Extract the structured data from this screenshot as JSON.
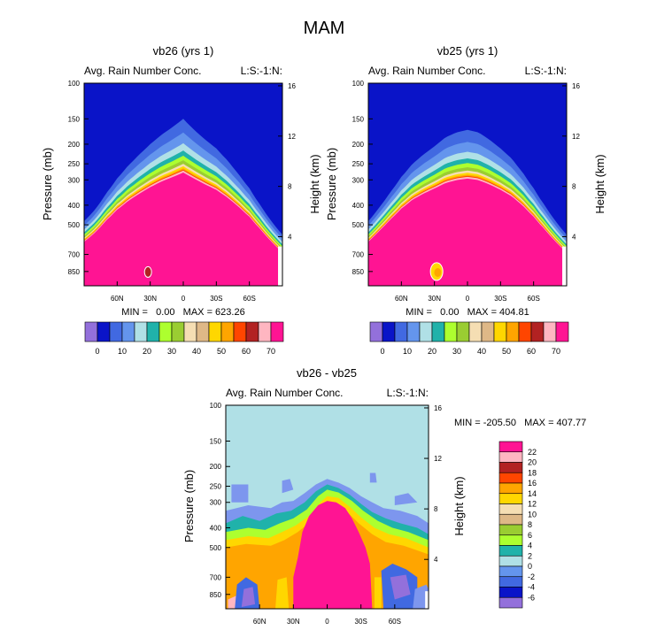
{
  "page": {
    "title": "MAM"
  },
  "colors": {
    "magenta": "#ff1493",
    "top_blue": "#0a14c8",
    "diff_bg": "#b0e0e6",
    "diff_light_blue": "#7d96ee",
    "diff_mid_blue": "#4169e1",
    "diff_dark_blue": "#0a14c8",
    "diff_purple": "#9370db",
    "panel_frame": "#000000"
  },
  "chart_data": [
    {
      "id": "vb26",
      "type": "heatmap",
      "title": "vb26 (yrs 1)",
      "left_string": "Avg. Rain Number Conc.",
      "right_string": "L:S:-1:N:",
      "ylabel": "Pressure (mb)",
      "y2label": "Height (km)",
      "xticks": [
        "60N",
        "30N",
        "0",
        "30S",
        "60S"
      ],
      "xtick_values": [
        60,
        30,
        0,
        -30,
        -60
      ],
      "xlim": [
        90,
        -90
      ],
      "yticks": [
        "100",
        "150",
        "200",
        "250",
        "300",
        "400",
        "500",
        "700",
        "850"
      ],
      "ytick_values": [
        100,
        150,
        200,
        250,
        300,
        400,
        500,
        700,
        850
      ],
      "ylim": [
        100,
        1000
      ],
      "y2ticks": [
        "16",
        "12",
        "8",
        "4"
      ],
      "y2tick_values": [
        16,
        12,
        8,
        4
      ],
      "stats": "MIN =   0.00   MAX = 623.26",
      "min": 0.0,
      "max": 623.26,
      "contour_top_pressure": {
        "lat": [
          90,
          80,
          70,
          60,
          50,
          40,
          30,
          20,
          10,
          0,
          -10,
          -20,
          -30,
          -40,
          -50,
          -60,
          -70,
          -80,
          -90
        ],
        "pressure": [
          600,
          540,
          470,
          415,
          375,
          345,
          320,
          300,
          285,
          270,
          290,
          310,
          330,
          360,
          400,
          450,
          520,
          600,
          680
        ]
      },
      "colorbar": {
        "labels": [
          "0",
          "10",
          "20",
          "30",
          "40",
          "50",
          "60",
          "70"
        ],
        "colors": [
          "#9370db",
          "#0a14c8",
          "#4169e1",
          "#6495ed",
          "#b0e0e6",
          "#20b2aa",
          "#adff2f",
          "#9acd32",
          "#f5deb3",
          "#deb887",
          "#ffd700",
          "#ffa500",
          "#ff4500",
          "#b22222",
          "#ffb6c1",
          "#ff1493"
        ]
      }
    },
    {
      "id": "vb25",
      "type": "heatmap",
      "title": "vb25 (yrs 1)",
      "left_string": "Avg. Rain Number Conc.",
      "right_string": "L:S:-1:N:",
      "ylabel": "Pressure (mb)",
      "y2label": "Height (km)",
      "xticks": [
        "60N",
        "30N",
        "0",
        "30S",
        "60S"
      ],
      "xtick_values": [
        60,
        30,
        0,
        -30,
        -60
      ],
      "xlim": [
        90,
        -90
      ],
      "yticks": [
        "100",
        "150",
        "200",
        "250",
        "300",
        "400",
        "500",
        "700",
        "850"
      ],
      "ytick_values": [
        100,
        150,
        200,
        250,
        300,
        400,
        500,
        700,
        850
      ],
      "ylim": [
        100,
        1000
      ],
      "y2ticks": [
        "16",
        "12",
        "8",
        "4"
      ],
      "y2tick_values": [
        16,
        12,
        8,
        4
      ],
      "stats": "MIN =   0.00   MAX = 404.81",
      "min": 0.0,
      "max": 404.81,
      "contour_top_pressure": {
        "lat": [
          90,
          80,
          70,
          60,
          50,
          40,
          30,
          20,
          10,
          0,
          -10,
          -20,
          -30,
          -40,
          -50,
          -60,
          -70,
          -80,
          -90
        ],
        "pressure": [
          600,
          530,
          465,
          410,
          370,
          345,
          325,
          305,
          295,
          290,
          295,
          310,
          330,
          355,
          395,
          450,
          520,
          600,
          680
        ]
      },
      "colorbar": {
        "labels": [
          "0",
          "10",
          "20",
          "30",
          "40",
          "50",
          "60",
          "70"
        ],
        "colors": [
          "#9370db",
          "#0a14c8",
          "#4169e1",
          "#6495ed",
          "#b0e0e6",
          "#20b2aa",
          "#adff2f",
          "#9acd32",
          "#f5deb3",
          "#deb887",
          "#ffd700",
          "#ffa500",
          "#ff4500",
          "#b22222",
          "#ffb6c1",
          "#ff1493"
        ]
      }
    },
    {
      "id": "diff",
      "type": "heatmap",
      "title": "vb26 - vb25",
      "left_string": "Avg. Rain Number Conc.",
      "right_string": "L:S:-1:N:",
      "ylabel": "Pressure (mb)",
      "y2label": "Height (km)",
      "xticks": [
        "60N",
        "30N",
        "0",
        "30S",
        "60S"
      ],
      "xtick_values": [
        60,
        30,
        0,
        -30,
        -60
      ],
      "xlim": [
        90,
        -90
      ],
      "yticks": [
        "100",
        "150",
        "200",
        "250",
        "300",
        "400",
        "500",
        "700",
        "850"
      ],
      "ytick_values": [
        100,
        150,
        200,
        250,
        300,
        400,
        500,
        700,
        850
      ],
      "ylim": [
        100,
        1000
      ],
      "y2ticks": [
        "16",
        "12",
        "8",
        "4"
      ],
      "y2tick_values": [
        16,
        12,
        8,
        4
      ],
      "stats": "MIN = -205.50   MAX = 407.77",
      "min": -205.5,
      "max": 407.77,
      "colorbar": {
        "labels": [
          "22",
          "20",
          "18",
          "16",
          "14",
          "12",
          "10",
          "8",
          "6",
          "4",
          "2",
          "0",
          "-2",
          "-4",
          "-6"
        ],
        "colors": [
          "#ff1493",
          "#ffb6c1",
          "#b22222",
          "#ff4500",
          "#ffa500",
          "#ffd700",
          "#f5deb3",
          "#deb887",
          "#9acd32",
          "#adff2f",
          "#20b2aa",
          "#b0e0e6",
          "#6495ed",
          "#4169e1",
          "#0a14c8",
          "#9370db"
        ]
      }
    }
  ]
}
